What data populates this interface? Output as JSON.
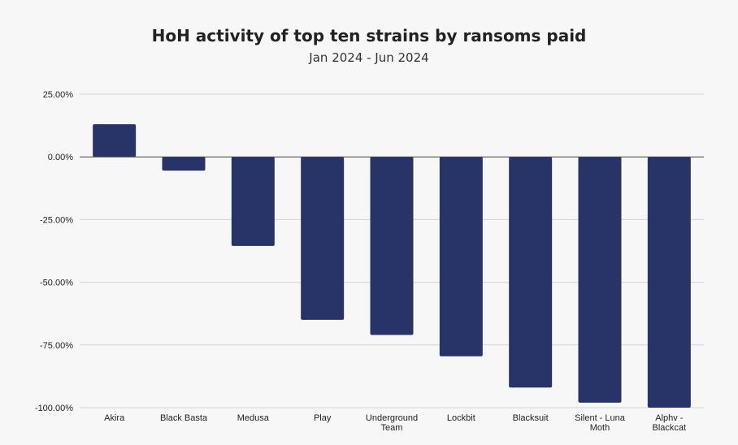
{
  "chart_data": {
    "type": "bar",
    "title": "HoH activity of top ten strains by ransoms paid",
    "subtitle": "Jan 2024 - Jun 2024",
    "xlabel": "",
    "ylabel": "",
    "categories": [
      "Akira",
      "Black Basta",
      "Medusa",
      "Play",
      "Underground Team",
      "Lockbit",
      "Blacksuit",
      "Silent - Luna Moth",
      "Alphv - Blackcat"
    ],
    "values": [
      13,
      -5.5,
      -35.5,
      -65,
      -71,
      -79.5,
      -92,
      -98,
      -100
    ],
    "ylim": [
      -100,
      25
    ],
    "yticks": [
      25,
      0,
      -25,
      -50,
      -75,
      -100
    ],
    "ytick_labels": [
      "25.00%",
      "0.00%",
      "-25.00%",
      "-50.00%",
      "-75.00%",
      "-100.00%"
    ],
    "grid": true,
    "bar_color": "#283468",
    "legend": "none"
  }
}
